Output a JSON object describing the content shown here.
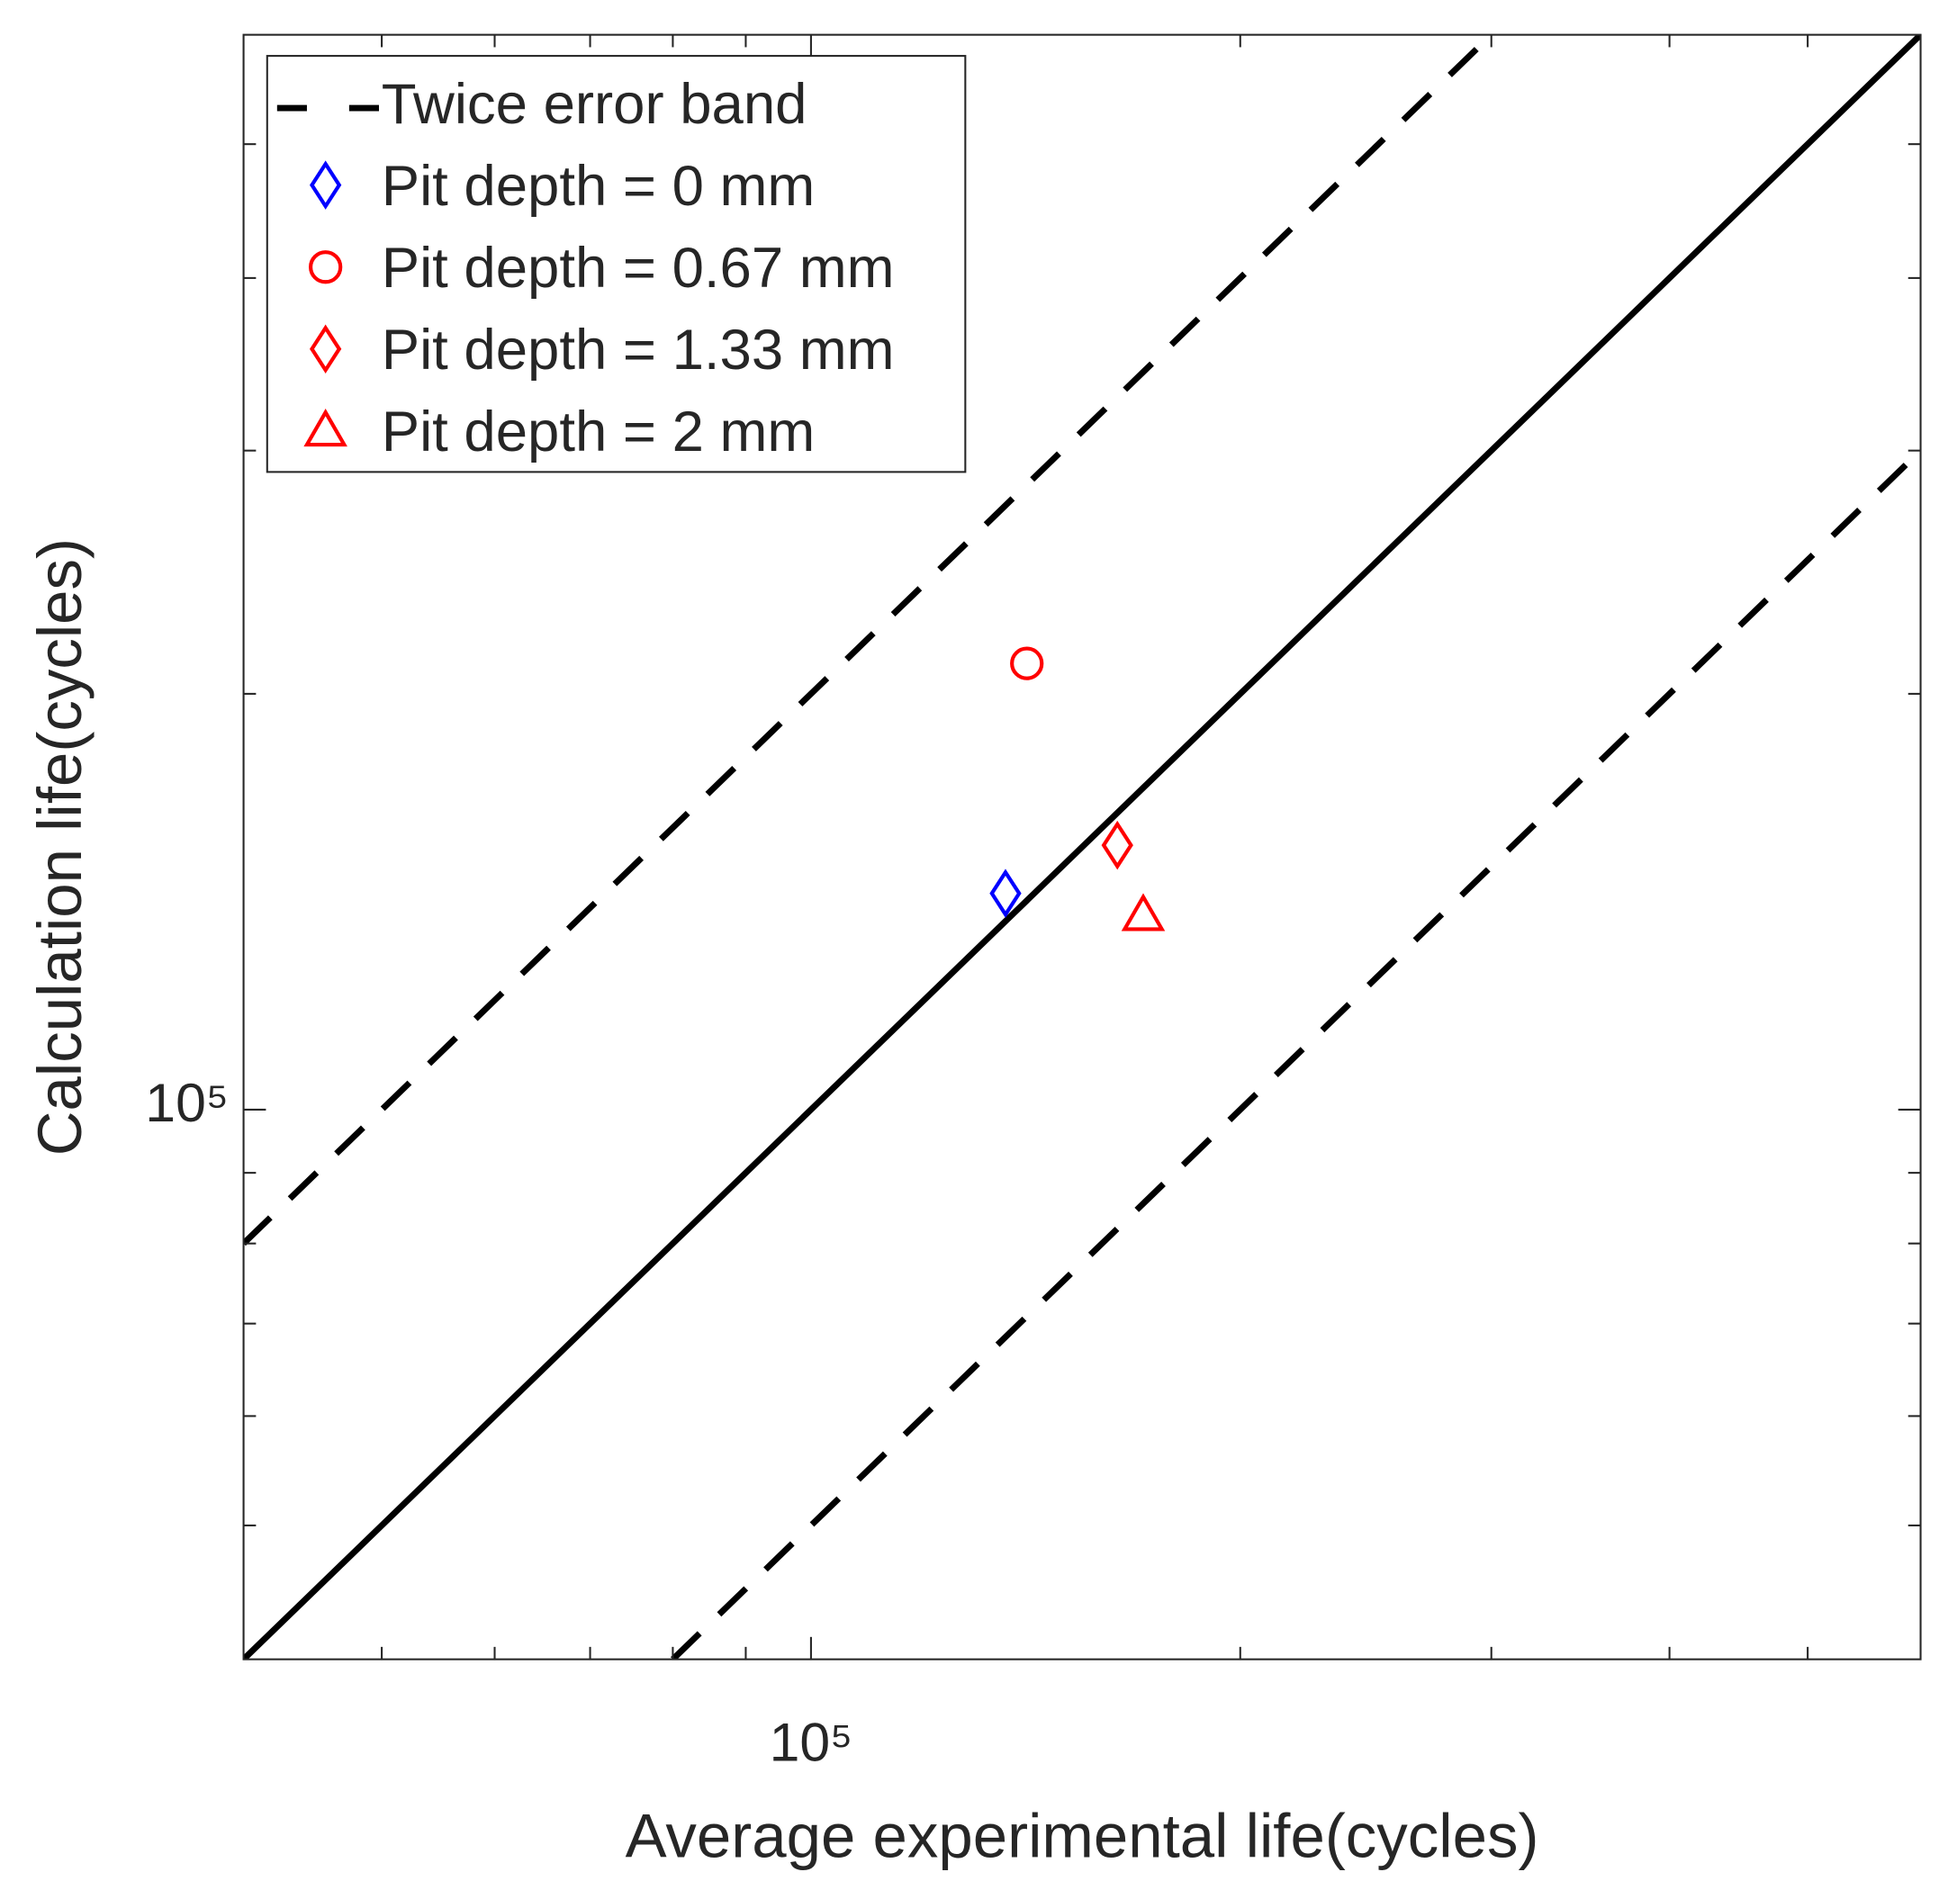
{
  "chart_data": {
    "type": "scatter",
    "xlabel": "Average experimental life(cycles)",
    "ylabel": "Calculation life(cycles)",
    "xscale": "log",
    "yscale": "log",
    "xlim": [
      40000,
      600000
    ],
    "ylim": [
      40000,
      600000
    ],
    "xticks": [
      {
        "value": 100000,
        "label": "10⁵"
      }
    ],
    "yticks": [
      {
        "value": 100000,
        "label": "10⁵"
      }
    ],
    "xminorticks": [
      50000,
      60000,
      70000,
      80000,
      90000,
      200000,
      300000,
      400000,
      500000
    ],
    "yminorticks": [
      50000,
      60000,
      70000,
      80000,
      90000,
      200000,
      300000,
      400000,
      500000
    ],
    "legend": "upper left",
    "series": [
      {
        "name": "Twice error band",
        "kind": "line",
        "style": "dashed",
        "color": "#000000",
        "x": [
          40000,
          300000
        ],
        "y": [
          80000,
          600000
        ]
      },
      {
        "kind": "line",
        "style": "dashed",
        "color": "#000000",
        "x": [
          80000,
          600000
        ],
        "y": [
          40000,
          300000
        ]
      },
      {
        "kind": "line",
        "style": "solid",
        "color": "#000000",
        "x": [
          40000,
          600000
        ],
        "y": [
          40000,
          600000
        ]
      },
      {
        "name": "Pit depth = 0 mm",
        "kind": "marker",
        "marker": "diamond",
        "color": "#0000ff",
        "x": [
          136900
        ],
        "y": [
          143400
        ]
      },
      {
        "name": "Pit depth = 0.67 mm",
        "kind": "marker",
        "marker": "circle",
        "color": "#ff0000",
        "x": [
          141700
        ],
        "y": [
          210400
        ]
      },
      {
        "name": "Pit depth = 1.33 mm",
        "kind": "marker",
        "marker": "diamond",
        "color": "#ff0000",
        "x": [
          164000
        ],
        "y": [
          155400
        ]
      },
      {
        "name": "Pit depth = 2 mm",
        "kind": "marker",
        "marker": "triangle",
        "color": "#ff0000",
        "x": [
          171000
        ],
        "y": [
          138200
        ]
      }
    ]
  }
}
